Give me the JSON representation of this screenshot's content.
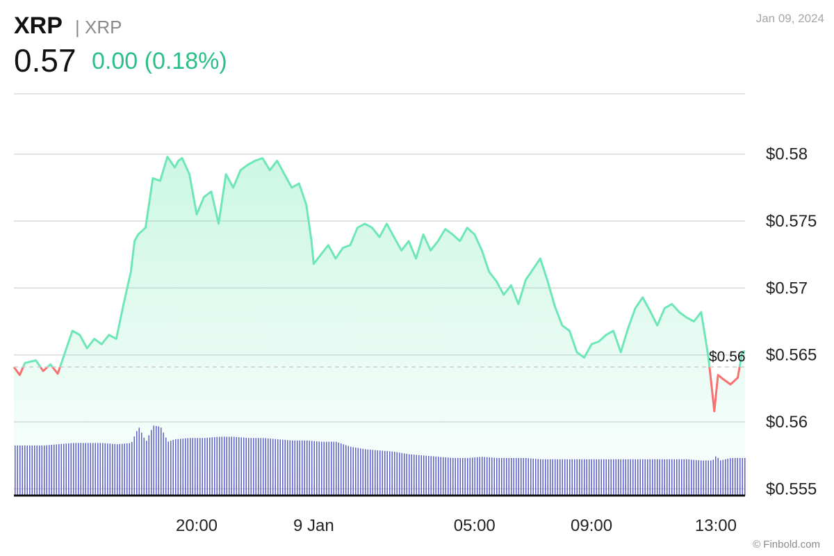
{
  "header": {
    "symbol": "XRP",
    "name": "| XRP",
    "price": "0.57",
    "change": "0.00 (0.18%)",
    "date": "Jan 09, 2024",
    "credit": "© Finbold.com"
  },
  "colors": {
    "up": "#6ee7b7",
    "down": "#f87171",
    "volume": "#5b54c9",
    "grid": "#d9d9d9",
    "reference": "#cccccc"
  },
  "chart_data": {
    "type": "area",
    "reference_value": 0.5641,
    "reference_label": "$0.56",
    "ylim": [
      0.5545,
      0.5845
    ],
    "y_ticks": [
      0.555,
      0.56,
      0.565,
      0.57,
      0.575,
      0.58
    ],
    "y_tick_labels": [
      "$0.555",
      "$0.56",
      "$0.565",
      "$0.57",
      "$0.575",
      "$0.58"
    ],
    "x_range": [
      0,
      100
    ],
    "x_ticks": [
      25,
      41,
      63,
      79,
      96
    ],
    "x_tick_labels": [
      "20:00",
      "9 Jan",
      "05:00",
      "09:00",
      "13:00"
    ],
    "grid": true,
    "series": [
      {
        "x": [
          0,
          0.8,
          1.5,
          3,
          4,
          5,
          6,
          7,
          8,
          9,
          10,
          11,
          12,
          13,
          14,
          15,
          16,
          16.5,
          17,
          18,
          19,
          20,
          21,
          22,
          22.5,
          23,
          24,
          25,
          26,
          27,
          28,
          29,
          30,
          31,
          32,
          33,
          34,
          35,
          36,
          37,
          38,
          39,
          40,
          40.7,
          41,
          42,
          43,
          44,
          45,
          46,
          47,
          48,
          49,
          50,
          51,
          52,
          53,
          54,
          55,
          56,
          57,
          58,
          59,
          60,
          61,
          62,
          63,
          64,
          65,
          66,
          67,
          68,
          69,
          70,
          71,
          72,
          73,
          74,
          75,
          76,
          77,
          78,
          79,
          80,
          81,
          82,
          83,
          84,
          85,
          86,
          87,
          88,
          89,
          90,
          91,
          92,
          93,
          94,
          95,
          95.8,
          96.3,
          97,
          98,
          99,
          99.6,
          100
        ],
        "values": [
          0.5641,
          0.5635,
          0.5644,
          0.5646,
          0.5638,
          0.5643,
          0.5636,
          0.5652,
          0.5668,
          0.5665,
          0.5655,
          0.5662,
          0.5658,
          0.5665,
          0.5662,
          0.5688,
          0.5712,
          0.5735,
          0.574,
          0.5745,
          0.5782,
          0.578,
          0.5798,
          0.579,
          0.5795,
          0.5797,
          0.5785,
          0.5755,
          0.5768,
          0.5772,
          0.5748,
          0.5785,
          0.5775,
          0.5788,
          0.5792,
          0.5795,
          0.5797,
          0.5788,
          0.5795,
          0.5785,
          0.5775,
          0.5778,
          0.5762,
          0.5735,
          0.5718,
          0.5725,
          0.5732,
          0.5722,
          0.573,
          0.5732,
          0.5745,
          0.5748,
          0.5745,
          0.5738,
          0.5748,
          0.5738,
          0.5728,
          0.5735,
          0.5722,
          0.574,
          0.5728,
          0.5735,
          0.5744,
          0.574,
          0.5735,
          0.5745,
          0.574,
          0.5728,
          0.5712,
          0.5705,
          0.5695,
          0.5702,
          0.5688,
          0.5706,
          0.5714,
          0.5722,
          0.5705,
          0.5686,
          0.5672,
          0.5668,
          0.5652,
          0.5648,
          0.5658,
          0.566,
          0.5665,
          0.5668,
          0.5652,
          0.567,
          0.5685,
          0.5693,
          0.5683,
          0.5672,
          0.5685,
          0.5688,
          0.5682,
          0.5678,
          0.5675,
          0.5682,
          0.5648,
          0.5608,
          0.5635,
          0.5632,
          0.5628,
          0.5633,
          0.5652,
          0.5653
        ]
      }
    ],
    "volume": {
      "x": [
        0,
        2,
        4,
        6,
        8,
        10,
        12,
        14,
        16,
        17,
        18,
        19,
        20,
        21,
        22,
        24,
        26,
        28,
        30,
        32,
        34,
        36,
        38,
        40,
        42,
        44,
        46,
        48,
        50,
        52,
        54,
        56,
        58,
        60,
        62,
        64,
        66,
        68,
        70,
        72,
        74,
        76,
        78,
        80,
        82,
        84,
        86,
        88,
        90,
        92,
        94,
        95.5,
        96,
        96.5,
        98,
        100
      ],
      "values": [
        0.4,
        0.4,
        0.4,
        0.41,
        0.42,
        0.42,
        0.42,
        0.41,
        0.42,
        0.55,
        0.43,
        0.56,
        0.55,
        0.43,
        0.45,
        0.46,
        0.46,
        0.47,
        0.47,
        0.46,
        0.46,
        0.45,
        0.44,
        0.44,
        0.43,
        0.43,
        0.39,
        0.37,
        0.36,
        0.35,
        0.33,
        0.32,
        0.31,
        0.3,
        0.3,
        0.31,
        0.3,
        0.3,
        0.3,
        0.29,
        0.29,
        0.29,
        0.29,
        0.29,
        0.29,
        0.29,
        0.29,
        0.29,
        0.29,
        0.29,
        0.28,
        0.28,
        0.32,
        0.28,
        0.3,
        0.3
      ]
    }
  }
}
